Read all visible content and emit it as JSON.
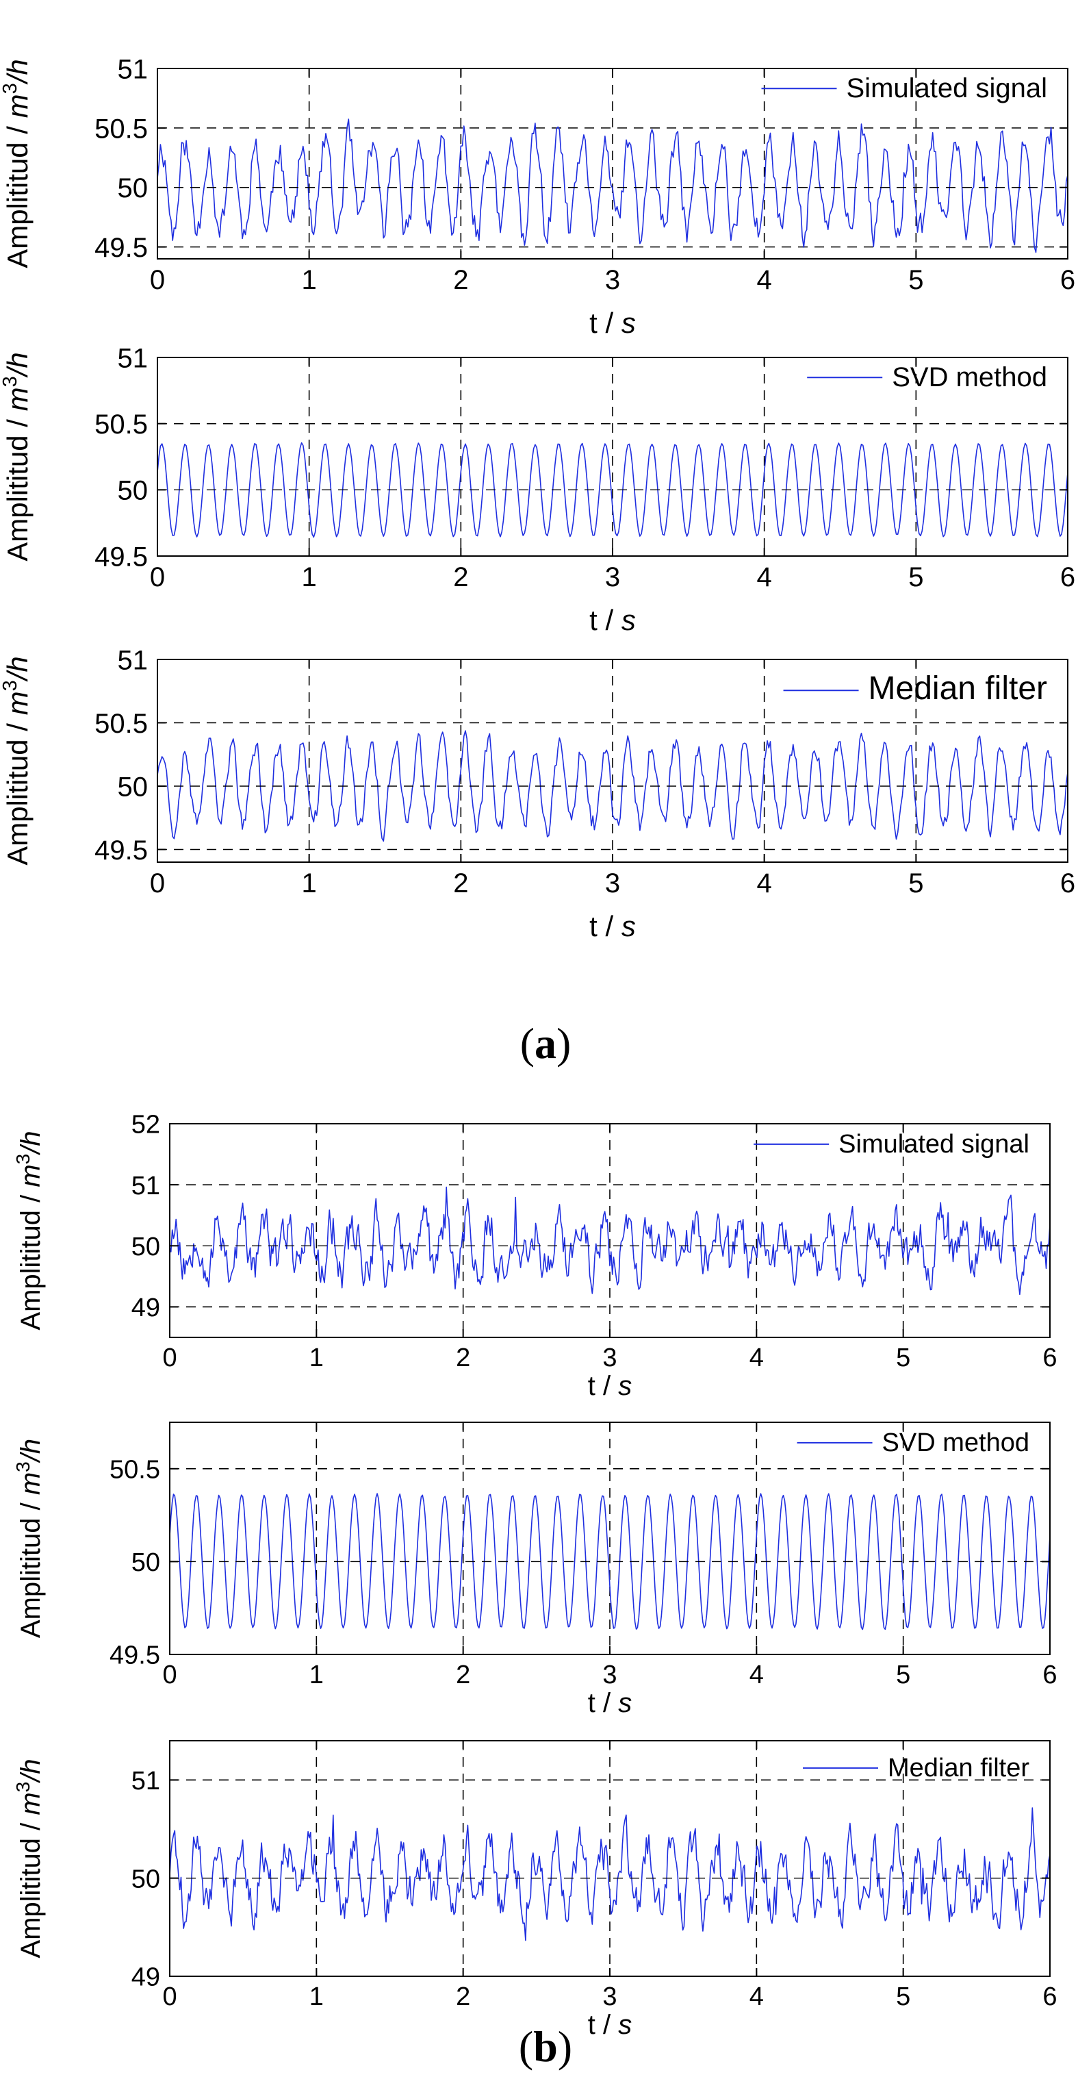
{
  "figure": {
    "captions": {
      "a": "a",
      "b": "b"
    }
  },
  "chart_data": [
    {
      "id": "a1",
      "type": "line",
      "group": "a",
      "legend": "Simulated signal",
      "ylabel_prefix": "Amplititud / ",
      "ylabel_unit": "m",
      "ylabel_sup": "3",
      "ylabel_suffix": "/h",
      "xlabel_prefix": "t / ",
      "xlabel_unit": "s",
      "xlim": [
        0,
        6
      ],
      "ylim": [
        49.4,
        51
      ],
      "xticks": [
        "0",
        "1",
        "2",
        "3",
        "4",
        "5",
        "6"
      ],
      "yticks": [
        "49.5",
        "50",
        "50.5",
        "51"
      ],
      "ytick_values": [
        49.5,
        50,
        50.5,
        51
      ],
      "hgrid": [
        49.5,
        50.5
      ],
      "center": 50,
      "signal": {
        "offset": 50,
        "amplitude": 0.37,
        "frequency_hz": 6.5,
        "noise": 0.13,
        "samples": 600,
        "seed": 11
      }
    },
    {
      "id": "a2",
      "type": "line",
      "group": "a",
      "legend": "SVD method",
      "ylabel_prefix": "Amplititud / ",
      "ylabel_unit": "m",
      "ylabel_sup": "3",
      "ylabel_suffix": "/h",
      "xlabel_prefix": "t / ",
      "xlabel_unit": "s",
      "xlim": [
        0,
        6
      ],
      "ylim": [
        49.5,
        51
      ],
      "xticks": [
        "0",
        "1",
        "2",
        "3",
        "4",
        "5",
        "6"
      ],
      "yticks": [
        "49.5",
        "50",
        "50.5",
        "51"
      ],
      "ytick_values": [
        49.5,
        50,
        50.5,
        51
      ],
      "hgrid": [
        50.5
      ],
      "center": 50,
      "signal": {
        "offset": 50,
        "amplitude": 0.35,
        "frequency_hz": 6.5,
        "noise": 0.005,
        "samples": 600,
        "seed": 23
      }
    },
    {
      "id": "a3",
      "type": "line",
      "group": "a",
      "legend": "Median filter",
      "ylabel_prefix": "Amplititud / ",
      "ylabel_unit": "m",
      "ylabel_sup": "3",
      "ylabel_suffix": "/h",
      "xlabel_prefix": "t / ",
      "xlabel_unit": "s",
      "xlim": [
        0,
        6
      ],
      "ylim": [
        49.4,
        51
      ],
      "xticks": [
        "0",
        "1",
        "2",
        "3",
        "4",
        "5",
        "6"
      ],
      "yticks": [
        "49.5",
        "50",
        "50.5",
        "51"
      ],
      "ytick_values": [
        49.5,
        50,
        50.5,
        51
      ],
      "hgrid": [
        49.5,
        50.5
      ],
      "center": 50,
      "signal": {
        "offset": 50,
        "amplitude": 0.33,
        "frequency_hz": 6.5,
        "noise": 0.08,
        "samples": 600,
        "seed": 37
      }
    },
    {
      "id": "b1",
      "type": "line",
      "group": "b",
      "legend": "Simulated signal",
      "ylabel_prefix": "Amplititud / ",
      "ylabel_unit": "m",
      "ylabel_sup": "3",
      "ylabel_suffix": "/h",
      "xlabel_prefix": "t / ",
      "xlabel_unit": "s",
      "xlim": [
        0,
        6
      ],
      "ylim": [
        48.5,
        52
      ],
      "xticks": [
        "0",
        "1",
        "2",
        "3",
        "4",
        "5",
        "6"
      ],
      "yticks": [
        "49",
        "50",
        "51",
        "52"
      ],
      "ytick_values": [
        49,
        50,
        51,
        52
      ],
      "hgrid": [
        49,
        51
      ],
      "center": 50,
      "signal": {
        "offset": 50,
        "amplitude": 0.35,
        "frequency_hz": 6.5,
        "noise": 0.32,
        "samples": 700,
        "seed": 53
      }
    },
    {
      "id": "b2",
      "type": "line",
      "group": "b",
      "legend": "SVD method",
      "ylabel_prefix": "Amplititud / ",
      "ylabel_unit": "m",
      "ylabel_sup": "3",
      "ylabel_suffix": "/h",
      "xlabel_prefix": "t / ",
      "xlabel_unit": "s",
      "xlim": [
        0,
        6
      ],
      "ylim": [
        49.5,
        50.75
      ],
      "xticks": [
        "0",
        "1",
        "2",
        "3",
        "4",
        "5",
        "6"
      ],
      "yticks": [
        "49.5",
        "50",
        "50.5"
      ],
      "ytick_values": [
        49.5,
        50,
        50.5
      ],
      "hgrid": [
        50.5
      ],
      "center": 50,
      "signal": {
        "offset": 50,
        "amplitude": 0.36,
        "frequency_hz": 6.5,
        "noise": 0.005,
        "samples": 700,
        "seed": 71
      }
    },
    {
      "id": "b3",
      "type": "line",
      "group": "b",
      "legend": "Median filter",
      "ylabel_prefix": "Amplititud / ",
      "ylabel_unit": "m",
      "ylabel_sup": "3",
      "ylabel_suffix": "/h",
      "xlabel_prefix": "t / ",
      "xlabel_unit": "s",
      "xlim": [
        0,
        6
      ],
      "ylim": [
        49,
        51.4
      ],
      "xticks": [
        "0",
        "1",
        "2",
        "3",
        "4",
        "5",
        "6"
      ],
      "yticks": [
        "49",
        "50",
        "51"
      ],
      "ytick_values": [
        49,
        50,
        51
      ],
      "hgrid": [
        51
      ],
      "center": 50,
      "signal": {
        "offset": 50,
        "amplitude": 0.3,
        "frequency_hz": 6.5,
        "noise": 0.2,
        "samples": 700,
        "seed": 89
      }
    }
  ]
}
